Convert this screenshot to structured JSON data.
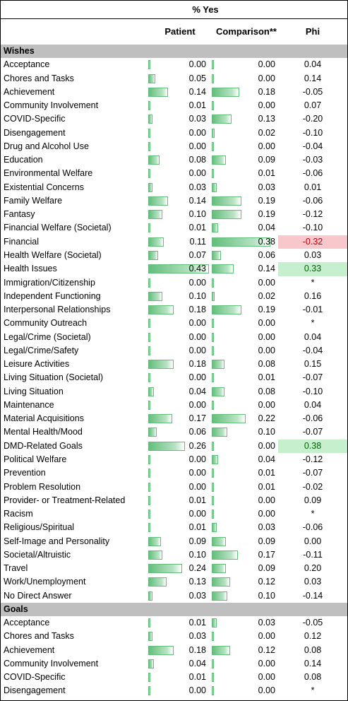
{
  "header": {
    "super_label": "% Yes",
    "col_patient": "Patient",
    "col_comparison": "Comparison**",
    "col_phi": "Phi"
  },
  "rows": [
    {
      "section": "Wishes"
    },
    {
      "label": "Acceptance",
      "patient": "0.00",
      "comparison": "0.00",
      "phi": "0.04"
    },
    {
      "label": "Chores and Tasks",
      "patient": "0.05",
      "comparison": "0.00",
      "phi": "0.14"
    },
    {
      "label": "Achievement",
      "patient": "0.14",
      "comparison": "0.18",
      "phi": "-0.05"
    },
    {
      "label": "Community Involvement",
      "patient": "0.01",
      "comparison": "0.00",
      "phi": "0.07"
    },
    {
      "label": "COVID-Specific",
      "patient": "0.03",
      "comparison": "0.13",
      "phi": "-0.20"
    },
    {
      "label": "Disengagement",
      "patient": "0.00",
      "comparison": "0.02",
      "phi": "-0.10"
    },
    {
      "label": "Drug and Alcohol Use",
      "patient": "0.00",
      "comparison": "0.00",
      "phi": "-0.04"
    },
    {
      "label": "Education",
      "patient": "0.08",
      "comparison": "0.09",
      "phi": "-0.03"
    },
    {
      "label": "Environmental Welfare",
      "patient": "0.00",
      "comparison": "0.01",
      "phi": "-0.06"
    },
    {
      "label": "Existential Concerns",
      "patient": "0.03",
      "comparison": "0.03",
      "phi": "0.01"
    },
    {
      "label": "Family Welfare",
      "patient": "0.14",
      "comparison": "0.19",
      "phi": "-0.06"
    },
    {
      "label": "Fantasy",
      "patient": "0.10",
      "comparison": "0.19",
      "phi": "-0.12"
    },
    {
      "label": "Financial Welfare (Societal)",
      "patient": "0.01",
      "comparison": "0.04",
      "phi": "-0.10"
    },
    {
      "label": "Financial",
      "patient": "0.11",
      "comparison": "0.38",
      "phi": "-0.32",
      "highlight": "neg"
    },
    {
      "label": "Health Welfare (Societal)",
      "patient": "0.07",
      "comparison": "0.06",
      "phi": "0.03"
    },
    {
      "label": "Health Issues",
      "patient": "0.43",
      "comparison": "0.14",
      "phi": "0.33",
      "highlight": "pos"
    },
    {
      "label": "Immigration/Citizenship",
      "patient": "0.00",
      "comparison": "0.00",
      "phi": "*"
    },
    {
      "label": "Independent Functioning",
      "patient": "0.10",
      "comparison": "0.02",
      "phi": "0.16"
    },
    {
      "label": "Interpersonal Relationships",
      "patient": "0.18",
      "comparison": "0.19",
      "phi": "-0.01"
    },
    {
      "label": "Community Outreach",
      "patient": "0.00",
      "comparison": "0.00",
      "phi": "*"
    },
    {
      "label": "Legal/Crime (Societal)",
      "patient": "0.00",
      "comparison": "0.00",
      "phi": "0.04"
    },
    {
      "label": "Legal/Crime/Safety",
      "patient": "0.00",
      "comparison": "0.00",
      "phi": "-0.04"
    },
    {
      "label": "Leisure Activities",
      "patient": "0.18",
      "comparison": "0.08",
      "phi": "0.15"
    },
    {
      "label": "Living Situation (Societal)",
      "patient": "0.00",
      "comparison": "0.01",
      "phi": "-0.07"
    },
    {
      "label": "Living Situation",
      "patient": "0.04",
      "comparison": "0.08",
      "phi": "-0.10"
    },
    {
      "label": "Maintenance",
      "patient": "0.00",
      "comparison": "0.00",
      "phi": "0.04"
    },
    {
      "label": "Material Acquisitions",
      "patient": "0.17",
      "comparison": "0.22",
      "phi": "-0.06"
    },
    {
      "label": "Mental Health/Mood",
      "patient": "0.06",
      "comparison": "0.10",
      "phi": "-0.07"
    },
    {
      "label": "DMD-Related Goals",
      "patient": "0.26",
      "comparison": "0.00",
      "phi": "0.38",
      "highlight": "pos"
    },
    {
      "label": "Political Welfare",
      "patient": "0.00",
      "comparison": "0.04",
      "phi": "-0.12"
    },
    {
      "label": "Prevention",
      "patient": "0.00",
      "comparison": "0.01",
      "phi": "-0.07"
    },
    {
      "label": "Problem Resolution",
      "patient": "0.00",
      "comparison": "0.01",
      "phi": "-0.02"
    },
    {
      "label": "Provider- or Treatment-Related",
      "patient": "0.01",
      "comparison": "0.00",
      "phi": "0.09"
    },
    {
      "label": "Racism",
      "patient": "0.00",
      "comparison": "0.00",
      "phi": "*"
    },
    {
      "label": "Religious/Spiritual",
      "patient": "0.01",
      "comparison": "0.03",
      "phi": "-0.06"
    },
    {
      "label": "Self-Image and Personality",
      "patient": "0.09",
      "comparison": "0.09",
      "phi": "0.00"
    },
    {
      "label": "Societal/Altruistic",
      "patient": "0.10",
      "comparison": "0.17",
      "phi": "-0.11"
    },
    {
      "label": "Travel",
      "patient": "0.24",
      "comparison": "0.09",
      "phi": "0.20"
    },
    {
      "label": "Work/Unemployment",
      "patient": "0.13",
      "comparison": "0.12",
      "phi": "0.03"
    },
    {
      "label": "No Direct Answer",
      "patient": "0.03",
      "comparison": "0.10",
      "phi": "-0.14"
    },
    {
      "section": "Goals"
    },
    {
      "label": "Acceptance",
      "patient": "0.01",
      "comparison": "0.03",
      "phi": "-0.05"
    },
    {
      "label": "Chores and Tasks",
      "patient": "0.03",
      "comparison": "0.00",
      "phi": "0.12"
    },
    {
      "label": "Achievement",
      "patient": "0.18",
      "comparison": "0.12",
      "phi": "0.08"
    },
    {
      "label": "Community Involvement",
      "patient": "0.04",
      "comparison": "0.00",
      "phi": "0.14"
    },
    {
      "label": "COVID-Specific",
      "patient": "0.01",
      "comparison": "0.00",
      "phi": "0.08"
    },
    {
      "label": "Disengagement",
      "patient": "0.00",
      "comparison": "0.00",
      "phi": "*"
    }
  ]
}
